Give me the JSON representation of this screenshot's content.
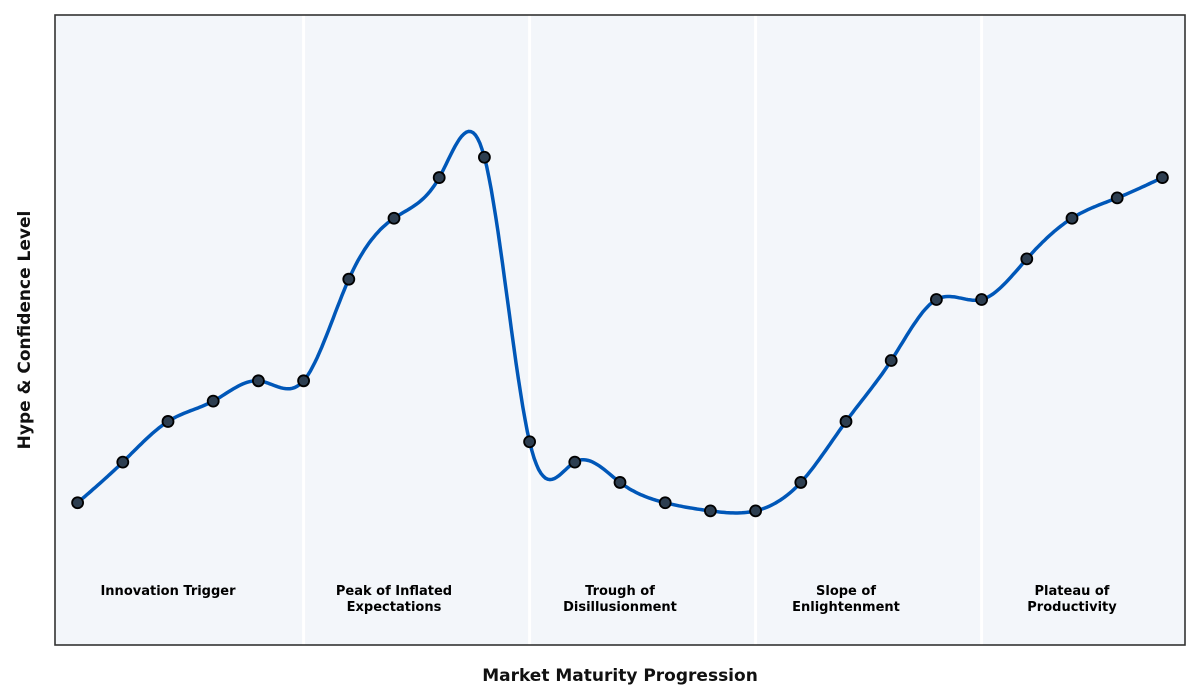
{
  "chart_data": {
    "type": "line",
    "title": "",
    "xlabel": "Market Maturity Progression",
    "ylabel": "Hype & Confidence Level",
    "x": [
      0,
      1,
      2,
      3,
      4,
      5,
      6,
      7,
      8,
      9,
      10,
      11,
      12,
      13,
      14,
      15,
      16,
      17,
      18,
      19,
      20,
      21,
      22,
      23,
      24
    ],
    "values": [
      35,
      45,
      55,
      60,
      65,
      65,
      90,
      105,
      115,
      120,
      50,
      45,
      40,
      35,
      33,
      33,
      40,
      55,
      70,
      85,
      85,
      95,
      105,
      110,
      115
    ],
    "xlim": [
      -0.5,
      24.5
    ],
    "ylim": [
      0,
      155
    ],
    "grid": false,
    "ticks_shown": false,
    "interpolation": "smooth spline",
    "phase_boundaries": [
      5,
      10,
      15,
      20
    ],
    "phases": [
      {
        "label": [
          "Innovation Trigger"
        ],
        "x": 2
      },
      {
        "label": [
          "Peak of Inflated",
          "Expectations"
        ],
        "x": 7
      },
      {
        "label": [
          "Trough of",
          "Disillusionment"
        ],
        "x": 12
      },
      {
        "label": [
          "Slope of",
          "Enlightenment"
        ],
        "x": 17
      },
      {
        "label": [
          "Plateau of",
          "Productivity"
        ],
        "x": 22
      }
    ],
    "colors": {
      "line": "#0057b8",
      "marker_fill": "#2d3e50",
      "marker_edge": "#000000",
      "background": "#f3f6fa",
      "divider": "#ffffff"
    }
  }
}
